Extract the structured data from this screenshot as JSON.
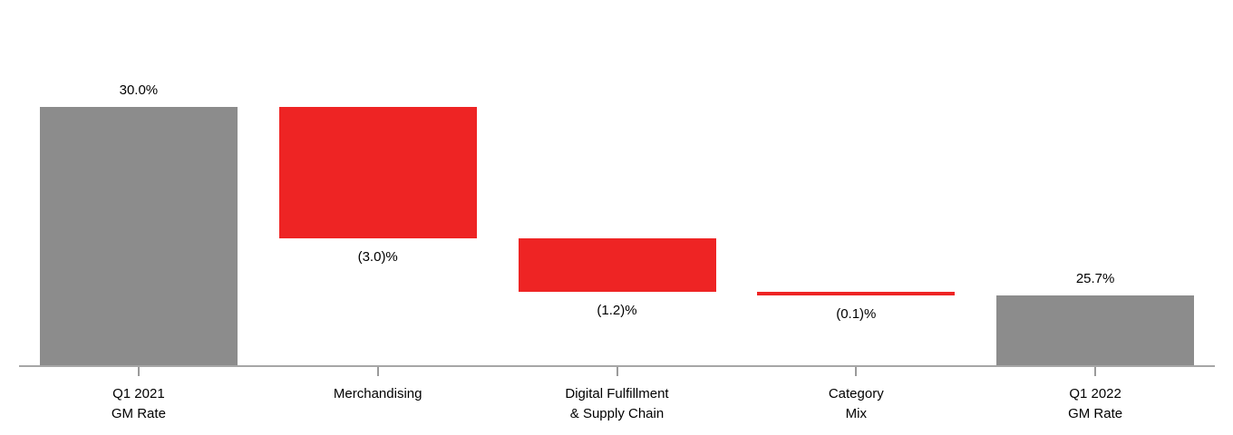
{
  "chart_data": {
    "type": "bar",
    "subtype": "waterfall",
    "title": "",
    "xlabel": "",
    "ylabel": "",
    "unit": "%",
    "grid": false,
    "legend": false,
    "ylim": [
      24.1,
      30.0
    ],
    "categories": [
      "Q1 2021 GM Rate",
      "Merchandising",
      "Digital Fulfillment & Supply Chain",
      "Category Mix",
      "Q1 2022 GM Rate"
    ],
    "bars": [
      {
        "category_lines": [
          "Q1 2021",
          "GM Rate"
        ],
        "value": 30.0,
        "value_label": "30.0%",
        "kind": "total"
      },
      {
        "category_lines": [
          "Merchandising"
        ],
        "value": -3.0,
        "value_label": "(3.0)%",
        "kind": "decrease"
      },
      {
        "category_lines": [
          "Digital Fulfillment",
          "& Supply Chain"
        ],
        "value": -1.2,
        "value_label": "(1.2)%",
        "kind": "decrease"
      },
      {
        "category_lines": [
          "Category",
          "Mix"
        ],
        "value": -0.1,
        "value_label": "(0.1)%",
        "kind": "decrease"
      },
      {
        "category_lines": [
          "Q1 2022",
          "GM Rate"
        ],
        "value": 25.7,
        "value_label": "25.7%",
        "kind": "total"
      }
    ],
    "colors": {
      "total_bar": "#8C8C8C",
      "decrease_bar": "#EE2424",
      "axis": "#A6A6A6",
      "tick": "#9A9A9A",
      "value_label": "#000000",
      "category_label": "#000000",
      "background": "#FFFFFF"
    }
  }
}
